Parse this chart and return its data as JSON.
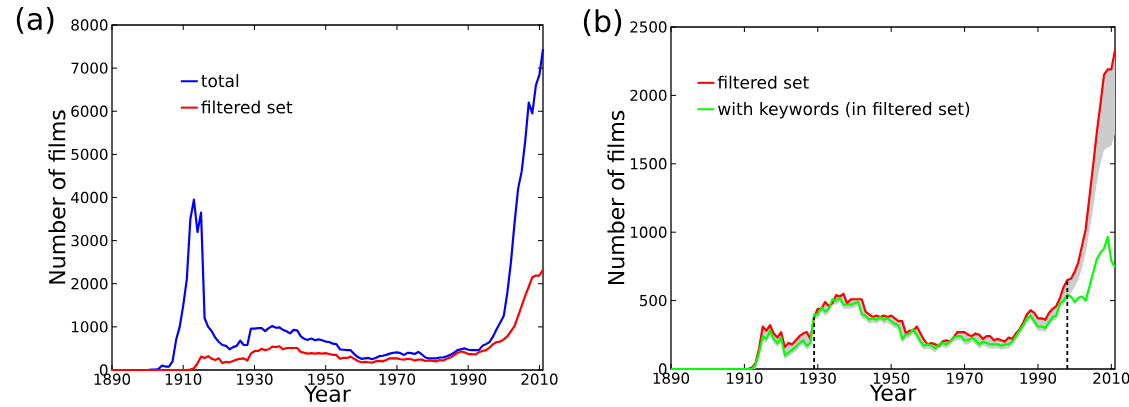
{
  "chart_data": [
    {
      "type": "line",
      "title": "(a)",
      "xlabel": "Year",
      "ylabel": "Number of films",
      "x": [
        1890,
        1891,
        1892,
        1893,
        1894,
        1895,
        1896,
        1897,
        1898,
        1899,
        1900,
        1901,
        1902,
        1903,
        1904,
        1905,
        1906,
        1907,
        1908,
        1909,
        1910,
        1911,
        1912,
        1913,
        1914,
        1915,
        1916,
        1917,
        1918,
        1919,
        1920,
        1921,
        1922,
        1923,
        1924,
        1925,
        1926,
        1927,
        1928,
        1929,
        1930,
        1931,
        1932,
        1933,
        1934,
        1935,
        1936,
        1937,
        1938,
        1939,
        1940,
        1941,
        1942,
        1943,
        1944,
        1945,
        1946,
        1947,
        1948,
        1949,
        1950,
        1951,
        1952,
        1953,
        1954,
        1955,
        1956,
        1957,
        1958,
        1959,
        1960,
        1961,
        1962,
        1963,
        1964,
        1965,
        1966,
        1967,
        1968,
        1969,
        1970,
        1971,
        1972,
        1973,
        1974,
        1975,
        1976,
        1977,
        1978,
        1979,
        1980,
        1981,
        1982,
        1983,
        1984,
        1985,
        1986,
        1987,
        1988,
        1989,
        1990,
        1991,
        1992,
        1993,
        1994,
        1995,
        1996,
        1997,
        1998,
        1999,
        2000,
        2001,
        2002,
        2003,
        2004,
        2005,
        2006,
        2007,
        2008,
        2009,
        2010,
        2011
      ],
      "series": [
        {
          "name": "total",
          "color": "#0000ff",
          "values": [
            null,
            null,
            null,
            null,
            null,
            null,
            null,
            null,
            null,
            0,
            0,
            10,
            10,
            20,
            100,
            80,
            80,
            200,
            700,
            1000,
            1500,
            2100,
            3500,
            3950,
            3200,
            3650,
            1200,
            1000,
            900,
            750,
            650,
            580,
            560,
            480,
            530,
            560,
            680,
            580,
            580,
            960,
            960,
            970,
            970,
            900,
            970,
            1020,
            980,
            990,
            930,
            900,
            850,
            930,
            920,
            780,
            720,
            700,
            730,
            690,
            710,
            690,
            660,
            650,
            610,
            600,
            480,
            470,
            460,
            460,
            370,
            300,
            260,
            270,
            280,
            250,
            280,
            320,
            330,
            350,
            380,
            400,
            410,
            390,
            350,
            400,
            390,
            370,
            420,
            360,
            290,
            270,
            270,
            270,
            290,
            290,
            320,
            350,
            400,
            460,
            480,
            500,
            470,
            460,
            460,
            460,
            560,
            600,
            650,
            780,
            950,
            1100,
            1260,
            1800,
            2500,
            3400,
            4200,
            4600,
            5300,
            6200,
            5950,
            6600,
            6850,
            7440
          ]
        },
        {
          "name": "filtered set",
          "color": "#ff0000",
          "values": [
            0,
            0,
            0,
            0,
            0,
            0,
            0,
            0,
            0,
            0,
            0,
            0,
            0,
            0,
            0,
            0,
            0,
            0,
            0,
            0,
            0,
            0,
            10,
            40,
            150,
            310,
            280,
            320,
            260,
            230,
            270,
            160,
            190,
            180,
            210,
            240,
            260,
            270,
            220,
            380,
            440,
            440,
            490,
            460,
            480,
            540,
            530,
            550,
            480,
            510,
            510,
            510,
            510,
            420,
            400,
            380,
            390,
            380,
            390,
            380,
            390,
            370,
            350,
            350,
            260,
            280,
            280,
            310,
            260,
            210,
            180,
            190,
            180,
            170,
            200,
            210,
            200,
            230,
            270,
            270,
            270,
            250,
            240,
            260,
            250,
            220,
            240,
            240,
            210,
            220,
            210,
            200,
            230,
            220,
            260,
            290,
            340,
            400,
            430,
            410,
            370,
            370,
            360,
            410,
            440,
            460,
            520,
            600,
            650,
            660,
            710,
            780,
            900,
            1020,
            1250,
            1480,
            1720,
            1930,
            2150,
            2190,
            2190,
            2330
          ]
        }
      ],
      "xlim": [
        1890,
        2011
      ],
      "ylim": [
        0,
        8000
      ],
      "xticks": [
        1890,
        1910,
        1930,
        1950,
        1970,
        1990,
        2010
      ],
      "yticks": [
        0,
        1000,
        2000,
        3000,
        4000,
        5000,
        6000,
        7000,
        8000
      ],
      "legend": "top left"
    },
    {
      "type": "line",
      "title": "(b)",
      "xlabel": "Year",
      "ylabel": "Number of films",
      "x": [
        1890,
        1891,
        1892,
        1893,
        1894,
        1895,
        1896,
        1897,
        1898,
        1899,
        1900,
        1901,
        1902,
        1903,
        1904,
        1905,
        1906,
        1907,
        1908,
        1909,
        1910,
        1911,
        1912,
        1913,
        1914,
        1915,
        1916,
        1917,
        1918,
        1919,
        1920,
        1921,
        1922,
        1923,
        1924,
        1925,
        1926,
        1927,
        1928,
        1929,
        1930,
        1931,
        1932,
        1933,
        1934,
        1935,
        1936,
        1937,
        1938,
        1939,
        1940,
        1941,
        1942,
        1943,
        1944,
        1945,
        1946,
        1947,
        1948,
        1949,
        1950,
        1951,
        1952,
        1953,
        1954,
        1955,
        1956,
        1957,
        1958,
        1959,
        1960,
        1961,
        1962,
        1963,
        1964,
        1965,
        1966,
        1967,
        1968,
        1969,
        1970,
        1971,
        1972,
        1973,
        1974,
        1975,
        1976,
        1977,
        1978,
        1979,
        1980,
        1981,
        1982,
        1983,
        1984,
        1985,
        1986,
        1987,
        1988,
        1989,
        1990,
        1991,
        1992,
        1993,
        1994,
        1995,
        1996,
        1997,
        1998,
        1999,
        2000,
        2001,
        2002,
        2003,
        2004,
        2005,
        2006,
        2007,
        2008,
        2009,
        2010,
        2011
      ],
      "series": [
        {
          "name": "filtered set",
          "color": "#ff0000",
          "values": [
            null,
            null,
            null,
            null,
            null,
            null,
            null,
            null,
            null,
            null,
            null,
            null,
            null,
            null,
            null,
            null,
            null,
            null,
            null,
            0,
            0,
            0,
            10,
            40,
            150,
            310,
            280,
            320,
            260,
            230,
            270,
            160,
            190,
            180,
            210,
            240,
            260,
            270,
            220,
            380,
            440,
            440,
            490,
            460,
            480,
            540,
            530,
            550,
            480,
            510,
            510,
            510,
            510,
            420,
            400,
            380,
            390,
            380,
            390,
            380,
            390,
            370,
            350,
            350,
            260,
            280,
            280,
            310,
            260,
            210,
            180,
            190,
            180,
            170,
            200,
            210,
            200,
            230,
            270,
            270,
            270,
            250,
            240,
            260,
            250,
            220,
            240,
            240,
            210,
            220,
            210,
            200,
            230,
            220,
            260,
            290,
            340,
            400,
            430,
            410,
            370,
            370,
            360,
            410,
            440,
            460,
            520,
            600,
            650,
            660,
            710,
            780,
            900,
            1020,
            1250,
            1480,
            1720,
            1930,
            2150,
            2190,
            2190,
            2330
          ],
          "lower": [
            0,
            0,
            0,
            0,
            0,
            0,
            0,
            0,
            0,
            0,
            0,
            0,
            0,
            0,
            0,
            0,
            0,
            0,
            0,
            0,
            0,
            0,
            0,
            0,
            90,
            210,
            190,
            250,
            190,
            160,
            200,
            70,
            90,
            110,
            130,
            160,
            180,
            140,
            160,
            370,
            370,
            420,
            390,
            410,
            480,
            470,
            490,
            440,
            440,
            440,
            450,
            460,
            370,
            360,
            330,
            340,
            330,
            350,
            330,
            340,
            320,
            300,
            290,
            190,
            220,
            230,
            260,
            220,
            170,
            140,
            150,
            140,
            120,
            150,
            160,
            150,
            170,
            200,
            210,
            210,
            180,
            180,
            200,
            180,
            150,
            170,
            160,
            150,
            150,
            150,
            140,
            150,
            150,
            170,
            210,
            250,
            290,
            340,
            360,
            320,
            280,
            280,
            270,
            310,
            350,
            360,
            450,
            470,
            510,
            560,
            600,
            650,
            740,
            850,
            1000,
            1170,
            1350,
            1500,
            1600,
            1620,
            1630,
            1720
          ],
          "upper": [
            0,
            0,
            0,
            0,
            0,
            0,
            0,
            0,
            0,
            0,
            0,
            0,
            0,
            0,
            0,
            0,
            0,
            0,
            0,
            0,
            0,
            0,
            10,
            40,
            150,
            310,
            280,
            320,
            260,
            230,
            270,
            160,
            190,
            180,
            210,
            240,
            260,
            270,
            220,
            380,
            440,
            440,
            490,
            460,
            480,
            540,
            530,
            550,
            480,
            510,
            510,
            510,
            510,
            420,
            400,
            380,
            390,
            380,
            390,
            380,
            390,
            370,
            350,
            350,
            260,
            280,
            280,
            310,
            260,
            210,
            180,
            190,
            180,
            170,
            200,
            210,
            200,
            230,
            270,
            270,
            270,
            250,
            240,
            260,
            250,
            220,
            240,
            240,
            210,
            220,
            210,
            200,
            230,
            220,
            260,
            290,
            340,
            400,
            430,
            410,
            370,
            370,
            360,
            410,
            440,
            460,
            520,
            600,
            650,
            660,
            710,
            780,
            900,
            1020,
            1250,
            1480,
            1720,
            1930,
            2150,
            2190,
            2190,
            2330
          ]
        },
        {
          "name": "with keywords (in filtered set)",
          "color": "#00ff00",
          "values": [
            0,
            0,
            0,
            0,
            0,
            0,
            0,
            0,
            0,
            0,
            0,
            0,
            0,
            0,
            0,
            0,
            0,
            0,
            0,
            0,
            0,
            0,
            0,
            30,
            120,
            240,
            220,
            280,
            220,
            190,
            230,
            100,
            120,
            140,
            160,
            190,
            210,
            170,
            190,
            400,
            400,
            450,
            420,
            440,
            510,
            500,
            520,
            470,
            470,
            470,
            480,
            490,
            400,
            390,
            360,
            370,
            360,
            380,
            360,
            370,
            350,
            330,
            320,
            220,
            250,
            260,
            290,
            250,
            200,
            170,
            180,
            170,
            150,
            180,
            190,
            180,
            200,
            230,
            240,
            240,
            210,
            210,
            230,
            210,
            180,
            200,
            190,
            180,
            180,
            180,
            170,
            180,
            180,
            200,
            240,
            280,
            320,
            370,
            390,
            350,
            310,
            310,
            300,
            340,
            380,
            390,
            480,
            500,
            540,
            530,
            490,
            520,
            530,
            500,
            600,
            700,
            800,
            850,
            880,
            965,
            790,
            745
          ]
        }
      ],
      "xlim": [
        1890,
        2011
      ],
      "ylim": [
        0,
        2500
      ],
      "xticks": [
        1890,
        1910,
        1930,
        1950,
        1970,
        1990,
        2010
      ],
      "yticks": [
        0,
        500,
        1000,
        1500,
        2000,
        2500
      ],
      "ref_lines": [
        {
          "axis": "x",
          "value": 1929,
          "color": "#000000",
          "line_style": "dashed"
        },
        {
          "axis": "x",
          "value": 1998,
          "color": "#000000",
          "line_style": "dashed"
        }
      ],
      "legend": "top left"
    }
  ]
}
